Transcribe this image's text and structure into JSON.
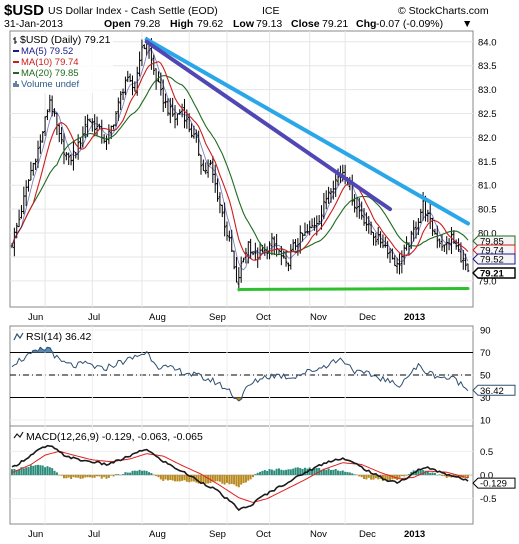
{
  "header": {
    "symbol": "$USD",
    "name": "US Dollar Index - Cash Settle (EOD)",
    "exchange": "ICE",
    "logo": "© StockCharts.com",
    "date": "31-Jan-2013",
    "open_label": "Open",
    "open_value": "79.28",
    "high_label": "High",
    "high_value": "79.62",
    "low_label": "Low",
    "low_value": "79.13",
    "close_label": "Close",
    "close_value": "79.21",
    "chg_label": "Chg",
    "chg_value": "-0.07 (-0.09%)",
    "dash": "▼"
  },
  "colors": {
    "price_bar": "#000000",
    "ma5": "#1a1a8c",
    "ma10": "#cc1d1d",
    "ma20": "#1e6b1e",
    "trend_light": "#2aa7e8",
    "trend_dark": "#5046b4",
    "support": "#2ec02e",
    "rsi_line": "#2f4f6f",
    "macd_line": "#1a1a1a",
    "signal_line": "#e02020",
    "hist_pos": "#2a8c7a",
    "hist_neg": "#b88a20"
  },
  "chart_data": [
    {
      "type": "line",
      "panel": "price",
      "title": "$USD (Daily) 79.21",
      "legend": [
        {
          "label": "$USD (Daily) 79.21",
          "icon": "ohlc-bar-icon"
        },
        {
          "label": "MA(5) 79.52",
          "icon": "line-icon"
        },
        {
          "label": "MA(10) 79.74",
          "icon": "line-icon"
        },
        {
          "label": "MA(20) 79.85",
          "icon": "line-icon"
        },
        {
          "label": "Volume undef",
          "icon": "volume-icon"
        }
      ],
      "x_labels": [
        "Jun",
        "Jul",
        "Aug",
        "Sep",
        "Oct",
        "Nov",
        "Dec",
        "2013"
      ],
      "ylim": [
        78.6,
        84.1
      ],
      "yticks": [
        79.0,
        79.5,
        80.0,
        80.5,
        81.0,
        81.5,
        82.0,
        82.5,
        83.0,
        83.5,
        84.0
      ],
      "right_labels": [
        {
          "label": "79.85",
          "value": 79.85
        },
        {
          "label": "79.74",
          "value": 79.74
        },
        {
          "label": "79.52",
          "value": 79.52
        },
        {
          "label": "79.21",
          "value": 79.21
        }
      ],
      "close_anchors": [
        [
          0,
          79.8
        ],
        [
          3,
          80.3
        ],
        [
          8,
          81.3
        ],
        [
          12,
          81.9
        ],
        [
          16,
          82.8
        ],
        [
          20,
          82.0
        ],
        [
          24,
          81.5
        ],
        [
          28,
          81.8
        ],
        [
          32,
          82.4
        ],
        [
          36,
          82.2
        ],
        [
          40,
          81.9
        ],
        [
          44,
          82.5
        ],
        [
          48,
          83.2
        ],
        [
          52,
          83.0
        ],
        [
          54,
          83.7
        ],
        [
          57,
          84.0
        ],
        [
          60,
          83.4
        ],
        [
          63,
          82.9
        ],
        [
          66,
          82.6
        ],
        [
          69,
          82.4
        ],
        [
          72,
          82.6
        ],
        [
          75,
          82.2
        ],
        [
          78,
          81.9
        ],
        [
          81,
          81.3
        ],
        [
          84,
          81.4
        ],
        [
          87,
          80.8
        ],
        [
          90,
          80.2
        ],
        [
          93,
          79.6
        ],
        [
          95,
          78.9
        ],
        [
          97,
          79.3
        ],
        [
          100,
          79.8
        ],
        [
          103,
          79.5
        ],
        [
          107,
          79.6
        ],
        [
          110,
          79.8
        ],
        [
          113,
          79.6
        ],
        [
          116,
          79.3
        ],
        [
          119,
          79.7
        ],
        [
          122,
          79.9
        ],
        [
          125,
          80.0
        ],
        [
          128,
          80.2
        ],
        [
          131,
          80.4
        ],
        [
          134,
          80.9
        ],
        [
          137,
          81.1
        ],
        [
          140,
          81.3
        ],
        [
          142,
          81.1
        ],
        [
          145,
          80.6
        ],
        [
          148,
          80.4
        ],
        [
          151,
          80.1
        ],
        [
          154,
          79.9
        ],
        [
          157,
          79.8
        ],
        [
          160,
          79.6
        ],
        [
          163,
          79.3
        ],
        [
          166,
          79.6
        ],
        [
          169,
          79.9
        ],
        [
          172,
          80.3
        ],
        [
          174,
          80.6
        ],
        [
          177,
          80.2
        ],
        [
          180,
          79.9
        ],
        [
          183,
          79.7
        ],
        [
          186,
          79.9
        ],
        [
          189,
          79.6
        ],
        [
          192,
          79.3
        ],
        [
          193,
          79.21
        ]
      ],
      "trend_lines": [
        {
          "from": [
            57,
            84.05
          ],
          "to": [
            193,
            80.2
          ],
          "color": "trend_light"
        },
        {
          "from": [
            57,
            84.0
          ],
          "to": [
            160,
            80.5
          ],
          "color": "trend_dark"
        },
        {
          "from": [
            96,
            78.82
          ],
          "to": [
            193,
            78.84
          ],
          "color": "support"
        }
      ]
    },
    {
      "type": "line",
      "panel": "rsi",
      "title": "RSI(14) 36.42",
      "ylim": [
        10,
        90
      ],
      "yticks": [
        10,
        30,
        50,
        70,
        90
      ],
      "levels": [
        30,
        50,
        70
      ],
      "last_label": "36.42",
      "anchors": [
        [
          0,
          60
        ],
        [
          6,
          66
        ],
        [
          12,
          72
        ],
        [
          16,
          74
        ],
        [
          20,
          62
        ],
        [
          26,
          58
        ],
        [
          32,
          60
        ],
        [
          38,
          55
        ],
        [
          44,
          60
        ],
        [
          50,
          64
        ],
        [
          54,
          68
        ],
        [
          57,
          70
        ],
        [
          62,
          58
        ],
        [
          68,
          55
        ],
        [
          74,
          52
        ],
        [
          80,
          48
        ],
        [
          86,
          44
        ],
        [
          92,
          36
        ],
        [
          96,
          27
        ],
        [
          100,
          40
        ],
        [
          106,
          48
        ],
        [
          112,
          50
        ],
        [
          118,
          48
        ],
        [
          124,
          52
        ],
        [
          130,
          56
        ],
        [
          136,
          62
        ],
        [
          140,
          64
        ],
        [
          146,
          52
        ],
        [
          152,
          50
        ],
        [
          158,
          46
        ],
        [
          163,
          40
        ],
        [
          168,
          50
        ],
        [
          172,
          58
        ],
        [
          176,
          52
        ],
        [
          182,
          48
        ],
        [
          188,
          46
        ],
        [
          193,
          36
        ]
      ]
    },
    {
      "type": "line",
      "panel": "macd",
      "title": "MACD(12,26,9) -0.129, -0.063, -0.065",
      "ylim": [
        -0.95,
        0.95
      ],
      "yticks": [
        -0.5,
        0.0,
        0.5
      ],
      "macd_last_label": "-0.129",
      "macd_anchors": [
        [
          0,
          0.15
        ],
        [
          6,
          0.35
        ],
        [
          12,
          0.55
        ],
        [
          16,
          0.62
        ],
        [
          22,
          0.42
        ],
        [
          28,
          0.32
        ],
        [
          34,
          0.28
        ],
        [
          40,
          0.22
        ],
        [
          46,
          0.32
        ],
        [
          52,
          0.45
        ],
        [
          57,
          0.55
        ],
        [
          62,
          0.35
        ],
        [
          68,
          0.18
        ],
        [
          74,
          0.02
        ],
        [
          80,
          -0.15
        ],
        [
          86,
          -0.3
        ],
        [
          92,
          -0.55
        ],
        [
          96,
          -0.72
        ],
        [
          100,
          -0.68
        ],
        [
          106,
          -0.45
        ],
        [
          112,
          -0.28
        ],
        [
          118,
          -0.12
        ],
        [
          124,
          0.05
        ],
        [
          130,
          0.2
        ],
        [
          136,
          0.32
        ],
        [
          140,
          0.35
        ],
        [
          146,
          0.22
        ],
        [
          152,
          0.05
        ],
        [
          158,
          -0.1
        ],
        [
          163,
          -0.15
        ],
        [
          168,
          -0.05
        ],
        [
          172,
          0.12
        ],
        [
          176,
          0.15
        ],
        [
          182,
          0.05
        ],
        [
          188,
          -0.04
        ],
        [
          193,
          -0.129
        ]
      ],
      "signal_anchors": [
        [
          0,
          0.05
        ],
        [
          8,
          0.22
        ],
        [
          14,
          0.42
        ],
        [
          20,
          0.5
        ],
        [
          26,
          0.42
        ],
        [
          34,
          0.32
        ],
        [
          42,
          0.28
        ],
        [
          50,
          0.34
        ],
        [
          57,
          0.45
        ],
        [
          64,
          0.4
        ],
        [
          72,
          0.2
        ],
        [
          80,
          0.02
        ],
        [
          88,
          -0.22
        ],
        [
          96,
          -0.48
        ],
        [
          102,
          -0.58
        ],
        [
          108,
          -0.5
        ],
        [
          116,
          -0.3
        ],
        [
          124,
          -0.1
        ],
        [
          132,
          0.12
        ],
        [
          140,
          0.26
        ],
        [
          148,
          0.22
        ],
        [
          156,
          0.05
        ],
        [
          164,
          -0.08
        ],
        [
          170,
          -0.05
        ],
        [
          176,
          0.08
        ],
        [
          184,
          0.06
        ],
        [
          193,
          -0.063
        ]
      ]
    }
  ]
}
